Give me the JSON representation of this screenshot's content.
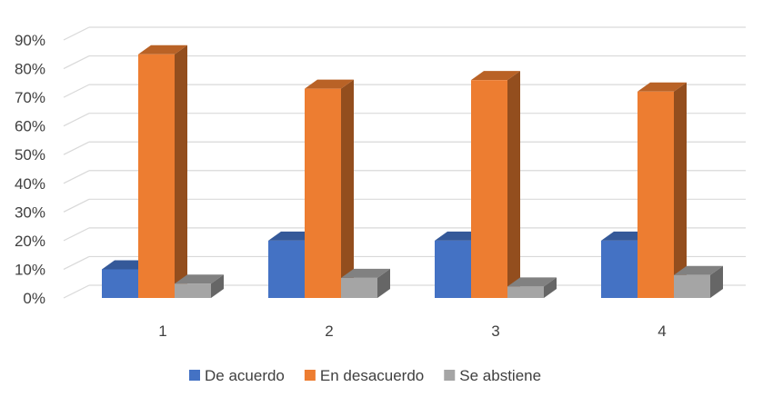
{
  "chart_data": {
    "type": "bar",
    "style": "3d-clustered-column",
    "title": "",
    "xlabel": "",
    "ylabel": "",
    "categories": [
      "1",
      "2",
      "3",
      "4"
    ],
    "y_ticks": [
      "0%",
      "10%",
      "20%",
      "30%",
      "40%",
      "50%",
      "60%",
      "70%",
      "80%",
      "90%"
    ],
    "ylim": [
      0,
      90
    ],
    "grid": true,
    "legend_position": "bottom",
    "series": [
      {
        "name": "De acuerdo",
        "color": "#4472C4",
        "values": [
          10,
          20,
          20,
          20
        ]
      },
      {
        "name": "En desacuerdo",
        "color": "#ED7D31",
        "values": [
          85,
          73,
          76,
          72
        ]
      },
      {
        "name": "Se abstiene",
        "color": "#A5A5A5",
        "values": [
          5,
          7,
          4,
          8
        ]
      }
    ]
  }
}
